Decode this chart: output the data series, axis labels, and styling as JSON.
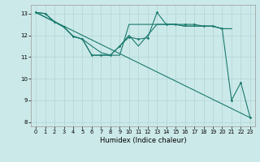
{
  "xlabel": "Humidex (Indice chaleur)",
  "xlim": [
    -0.5,
    23.5
  ],
  "ylim": [
    7.8,
    13.4
  ],
  "yticks": [
    8,
    9,
    10,
    11,
    12,
    13
  ],
  "xticks": [
    0,
    1,
    2,
    3,
    4,
    5,
    6,
    7,
    8,
    9,
    10,
    11,
    12,
    13,
    14,
    15,
    16,
    17,
    18,
    19,
    20,
    21,
    22,
    23
  ],
  "bg_color": "#cce9e9",
  "grid_color": "#b0d4d4",
  "line_color": "#1a7a6e",
  "line1_x": [
    0,
    1,
    2,
    3,
    4,
    5,
    6,
    7,
    8,
    9,
    10,
    11,
    12,
    13,
    14,
    15,
    16,
    17,
    18,
    19,
    20,
    21,
    22,
    23
  ],
  "line1_y": [
    13.05,
    13.0,
    12.62,
    12.38,
    11.95,
    11.82,
    11.08,
    11.08,
    11.08,
    11.5,
    11.92,
    11.82,
    11.88,
    13.05,
    12.5,
    12.5,
    12.5,
    12.5,
    12.42,
    12.42,
    12.3,
    9.0,
    9.82,
    8.2
  ],
  "line2_x": [
    0,
    1,
    2,
    3,
    4,
    5,
    6,
    7,
    8,
    9,
    10,
    11,
    12,
    13,
    14,
    15,
    16,
    17,
    18,
    19,
    20,
    21
  ],
  "line2_y": [
    13.05,
    13.0,
    12.62,
    12.38,
    11.95,
    11.82,
    11.08,
    11.08,
    11.08,
    11.08,
    12.5,
    12.5,
    12.5,
    12.5,
    12.5,
    12.5,
    12.42,
    12.42,
    12.42,
    12.42,
    12.3,
    12.3
  ],
  "line3_x": [
    0,
    2,
    3,
    4,
    5,
    6,
    7,
    8,
    9,
    10,
    11,
    12,
    13,
    14,
    15,
    16,
    17,
    18,
    19,
    20,
    21
  ],
  "line3_y": [
    13.05,
    12.62,
    12.38,
    11.95,
    11.82,
    11.5,
    11.2,
    11.08,
    11.5,
    12.0,
    11.5,
    12.0,
    12.5,
    12.5,
    12.5,
    12.42,
    12.42,
    12.42,
    12.42,
    12.3,
    12.3
  ],
  "line4_x": [
    0,
    23
  ],
  "line4_y": [
    13.05,
    8.2
  ]
}
